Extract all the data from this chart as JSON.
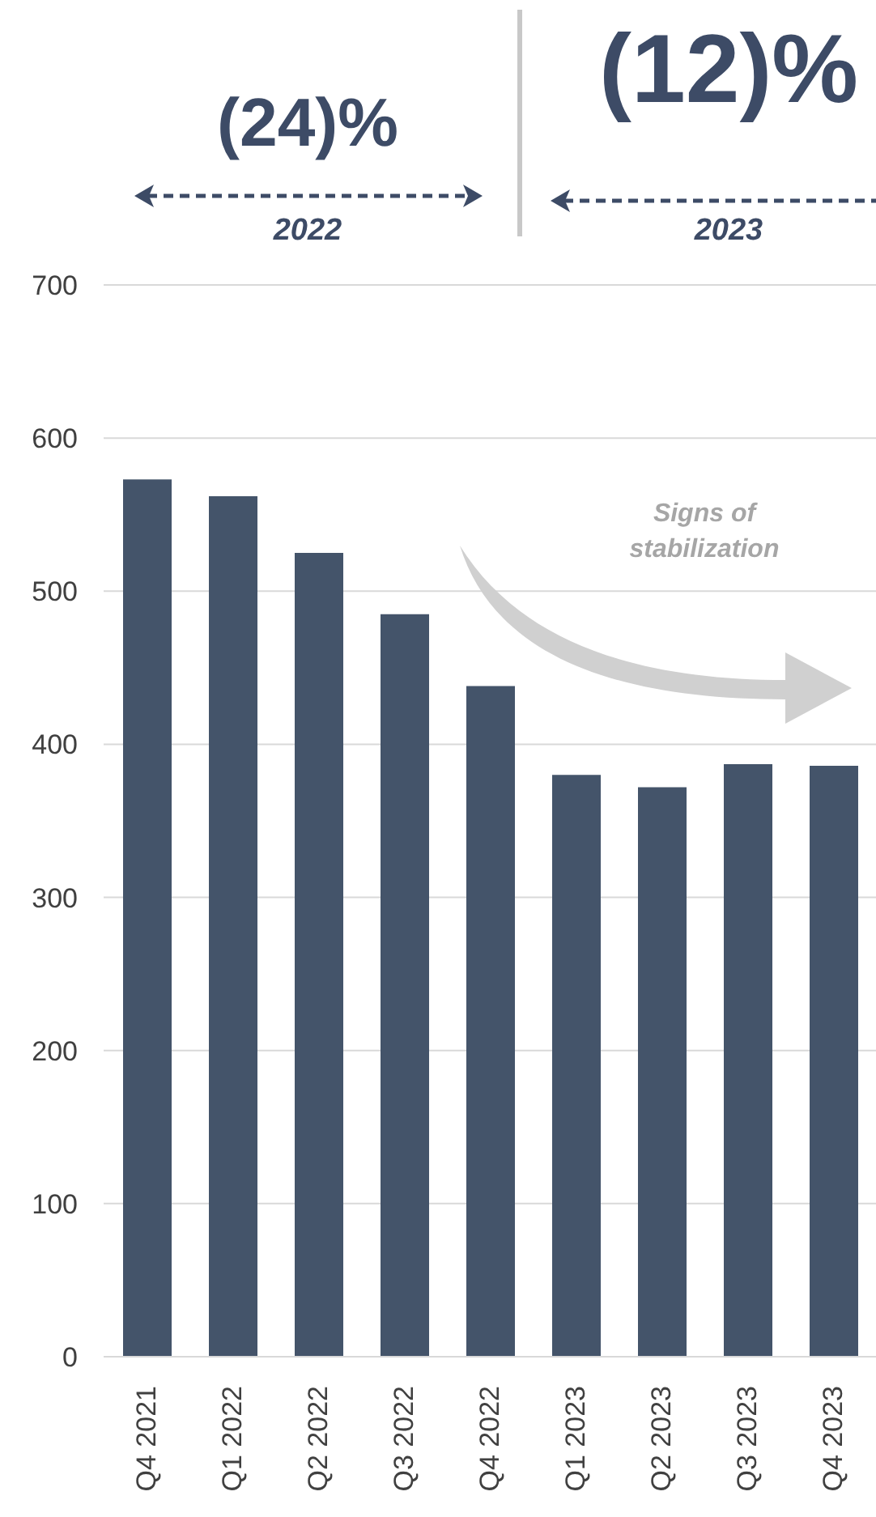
{
  "chart_data": {
    "type": "bar",
    "categories": [
      "Q4 2021",
      "Q1 2022",
      "Q2 2022",
      "Q3 2022",
      "Q4 2022",
      "Q1 2023",
      "Q2 2023",
      "Q3 2023",
      "Q4 2023"
    ],
    "values": [
      573,
      562,
      525,
      485,
      438,
      380,
      372,
      387,
      386
    ],
    "color": "#44546a",
    "ylim": [
      0,
      700
    ],
    "yticks": [
      0,
      100,
      200,
      300,
      400,
      500,
      600,
      700
    ],
    "grid": "y",
    "annotations": [
      "(24)%",
      "2022",
      "(12)%",
      "2023",
      "Signs of stabilization"
    ]
  }
}
